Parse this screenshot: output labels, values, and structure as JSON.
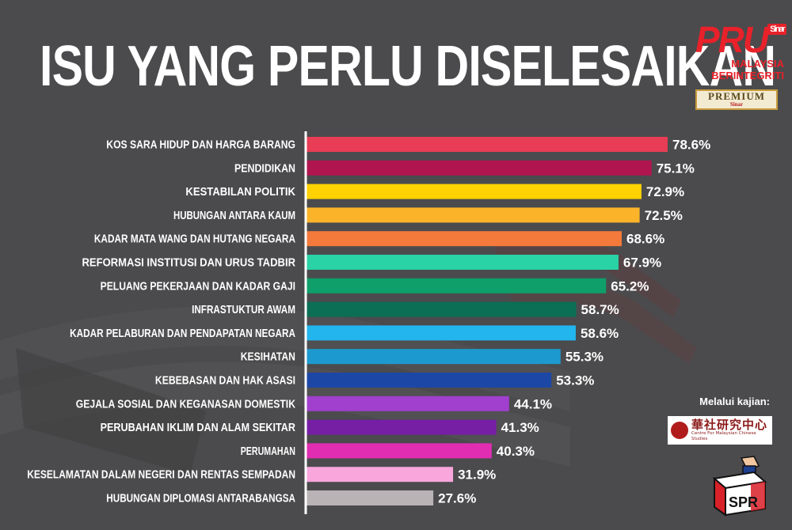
{
  "title": "ISU YANG PERLU DISELESAIKAN",
  "logo": {
    "brand": "PRU",
    "badge": "Sinar",
    "line1": "MALAYSIA",
    "line2": "BERINTEGRITI"
  },
  "premium": {
    "label": "PREMIUM",
    "sub": "Sinar"
  },
  "source": {
    "prefix": "Melalui kajian:",
    "org_cn": "華社研究中心",
    "org_en": "Centre For Malaysian Chinese Studies"
  },
  "spr_logo": {
    "text": "SPR"
  },
  "chart_data": {
    "type": "bar",
    "orientation": "horizontal",
    "title": "ISU YANG PERLU DISELESAIKAN",
    "xlabel": "",
    "ylabel": "",
    "xlim": [
      0,
      100
    ],
    "grid": false,
    "legend": "none",
    "value_suffix": "%",
    "categories": [
      "KOS SARA HIDUP DAN HARGA BARANG",
      "PENDIDIKAN",
      "KESTABILAN POLITIK",
      "HUBUNGAN ANTARA KAUM",
      "KADAR MATA WANG DAN HUTANG NEGARA",
      "REFORMASI INSTITUSI DAN URUS TADBIR",
      "PELUANG PEKERJAAN DAN KADAR GAJI",
      "INFRASTUKTUR AWAM",
      "KADAR PELABURAN DAN PENDAPATAN NEGARA",
      "KESIHATAN",
      "KEBEBASAN DAN HAK ASASI",
      "GEJALA SOSIAL DAN KEGANASAN DOMESTIK",
      "PERUBAHAN IKLIM DAN ALAM SEKITAR",
      "PERUMAHAN",
      "KESELAMATAN DALAM NEGERI DAN RENTAS SEMPADAN",
      "HUBUNGAN DIPLOMASI ANTARABANGSA"
    ],
    "values": [
      78.6,
      75.1,
      72.9,
      72.5,
      68.6,
      67.9,
      65.2,
      58.7,
      58.6,
      55.3,
      53.3,
      44.1,
      41.3,
      40.3,
      31.9,
      27.6
    ],
    "colors": [
      "#e83d55",
      "#b0154f",
      "#ffd200",
      "#fbb42a",
      "#f47a3c",
      "#29d3a6",
      "#0e9f6a",
      "#0b6f55",
      "#23b5ee",
      "#1c9ad0",
      "#1d47a6",
      "#a13fcf",
      "#761ea4",
      "#e12db2",
      "#f9a6dc",
      "#b9b3b6"
    ]
  }
}
